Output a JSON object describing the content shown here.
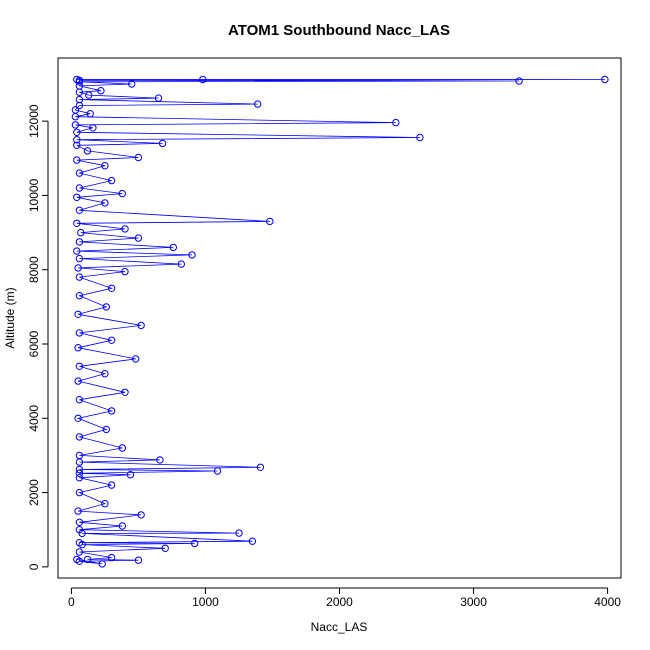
{
  "chart_data": {
    "type": "scatter",
    "title": "ATOM1 Southbound Nacc_LAS",
    "xlabel": "Nacc_LAS",
    "ylabel": "Altitude (m)",
    "xlim": [
      -100,
      4100
    ],
    "ylim": [
      -300,
      13700
    ],
    "x_ticks": [
      "0",
      "1000",
      "2000",
      "3000",
      "4000"
    ],
    "y_ticks": [
      "0",
      "2000",
      "4000",
      "6000",
      "8000",
      "10000",
      "12000"
    ],
    "grid": false,
    "legend": "none",
    "style": "points-and-lines",
    "point_color": "#0000ff",
    "line_color": "#0000ff",
    "note_points": "Approximate profile points read from the plot (x = Nacc_LAS, y = Altitude m)",
    "series": [
      {
        "points": [
          [
            40,
            13120
          ],
          [
            980,
            13120
          ],
          [
            3980,
            13120
          ],
          [
            60,
            13100
          ],
          [
            3340,
            13080
          ],
          [
            60,
            13060
          ],
          [
            450,
            13000
          ],
          [
            60,
            12950
          ],
          [
            220,
            12820
          ],
          [
            60,
            12780
          ],
          [
            130,
            12700
          ],
          [
            650,
            12620
          ],
          [
            60,
            12580
          ],
          [
            1390,
            12460
          ],
          [
            60,
            12420
          ],
          [
            30,
            12300
          ],
          [
            140,
            12200
          ],
          [
            30,
            12120
          ],
          [
            2420,
            11960
          ],
          [
            30,
            11900
          ],
          [
            160,
            11820
          ],
          [
            40,
            11700
          ],
          [
            2600,
            11560
          ],
          [
            40,
            11500
          ],
          [
            680,
            11400
          ],
          [
            40,
            11350
          ],
          [
            120,
            11200
          ],
          [
            500,
            11020
          ],
          [
            40,
            10950
          ],
          [
            250,
            10800
          ],
          [
            60,
            10600
          ],
          [
            300,
            10400
          ],
          [
            60,
            10200
          ],
          [
            380,
            10050
          ],
          [
            40,
            9950
          ],
          [
            250,
            9800
          ],
          [
            60,
            9600
          ],
          [
            1480,
            9300
          ],
          [
            40,
            9250
          ],
          [
            400,
            9100
          ],
          [
            70,
            9000
          ],
          [
            500,
            8850
          ],
          [
            60,
            8750
          ],
          [
            760,
            8600
          ],
          [
            40,
            8500
          ],
          [
            900,
            8400
          ],
          [
            60,
            8300
          ],
          [
            820,
            8150
          ],
          [
            50,
            8050
          ],
          [
            400,
            7950
          ],
          [
            60,
            7800
          ],
          [
            300,
            7500
          ],
          [
            60,
            7300
          ],
          [
            260,
            7000
          ],
          [
            50,
            6800
          ],
          [
            520,
            6500
          ],
          [
            60,
            6300
          ],
          [
            300,
            6100
          ],
          [
            50,
            5900
          ],
          [
            480,
            5600
          ],
          [
            60,
            5400
          ],
          [
            250,
            5200
          ],
          [
            50,
            5000
          ],
          [
            400,
            4700
          ],
          [
            60,
            4500
          ],
          [
            300,
            4200
          ],
          [
            50,
            4000
          ],
          [
            260,
            3700
          ],
          [
            60,
            3500
          ],
          [
            380,
            3200
          ],
          [
            60,
            3000
          ],
          [
            660,
            2880
          ],
          [
            60,
            2820
          ],
          [
            1410,
            2680
          ],
          [
            60,
            2620
          ],
          [
            1090,
            2580
          ],
          [
            60,
            2520
          ],
          [
            440,
            2480
          ],
          [
            60,
            2400
          ],
          [
            300,
            2200
          ],
          [
            60,
            2000
          ],
          [
            250,
            1700
          ],
          [
            50,
            1500
          ],
          [
            520,
            1400
          ],
          [
            60,
            1200
          ],
          [
            380,
            1100
          ],
          [
            60,
            1000
          ],
          [
            1250,
            910
          ],
          [
            80,
            900
          ],
          [
            1350,
            690
          ],
          [
            60,
            650
          ],
          [
            920,
            630
          ],
          [
            80,
            600
          ],
          [
            700,
            500
          ],
          [
            60,
            400
          ],
          [
            300,
            250
          ],
          [
            120,
            200
          ],
          [
            500,
            180
          ],
          [
            60,
            150
          ],
          [
            230,
            80
          ],
          [
            40,
            200
          ]
        ]
      }
    ]
  }
}
